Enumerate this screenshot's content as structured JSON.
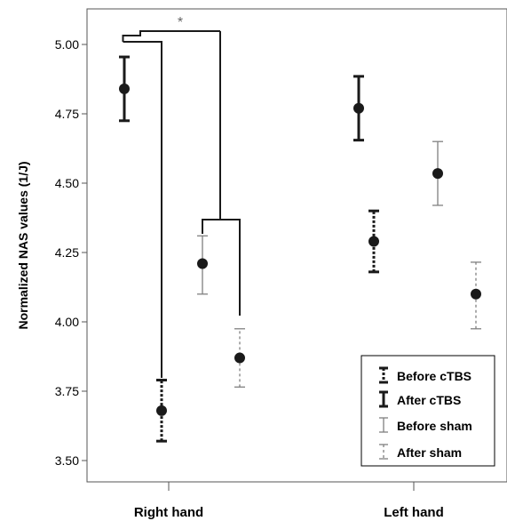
{
  "chart_data": {
    "type": "scatter",
    "subtype": "mean-with-error-bars",
    "xlabel": "",
    "ylabel": "Normalized NAS values (1/J)",
    "ylim": [
      3.45,
      5.13
    ],
    "yticks": [
      "3.50",
      "3.75",
      "4.00",
      "4.25",
      "4.50",
      "4.75",
      "5.00"
    ],
    "categories": [
      "Right hand",
      "Left hand"
    ],
    "grid": false,
    "legend_position": "bottom-right",
    "series": [
      {
        "name": "Before cTBS",
        "style": "dotted-bold",
        "color": "#1a1a1a",
        "values": [
          3.68,
          4.29
        ],
        "lower": [
          3.57,
          4.18
        ],
        "upper": [
          3.79,
          4.4
        ]
      },
      {
        "name": "After cTBS",
        "style": "solid-bold",
        "color": "#1a1a1a",
        "values": [
          4.84,
          4.77
        ],
        "lower": [
          4.725,
          4.655
        ],
        "upper": [
          4.955,
          4.885
        ]
      },
      {
        "name": "Before sham",
        "style": "solid-thin",
        "color": "#808080",
        "values": [
          4.21,
          4.535
        ],
        "lower": [
          4.1,
          4.42
        ],
        "upper": [
          4.31,
          4.65
        ]
      },
      {
        "name": "After sham",
        "style": "dashed-thin",
        "color": "#808080",
        "values": [
          3.87,
          4.1
        ],
        "lower": [
          3.765,
          3.975
        ],
        "upper": [
          3.975,
          4.215
        ]
      }
    ],
    "annotations": [
      {
        "text": "*"
      }
    ]
  }
}
